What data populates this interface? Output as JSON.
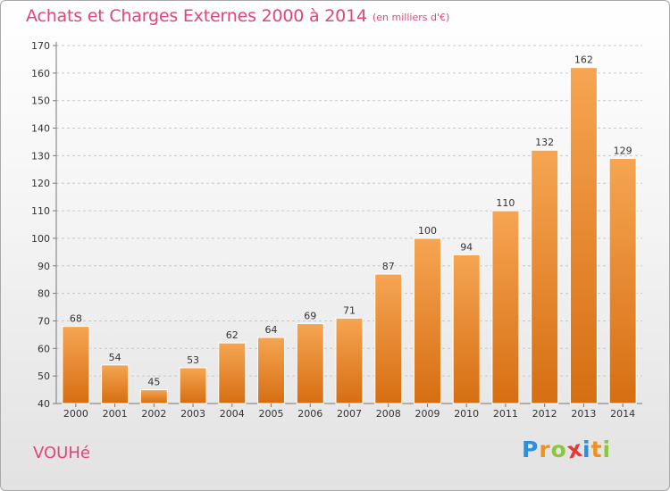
{
  "title": "Achats et Charges Externes 2000 à 2014",
  "subtitle": "(en milliers d'€)",
  "commune": "VOUHé",
  "logo": {
    "letters": [
      "P",
      "r",
      "o",
      "x",
      "i",
      "t",
      "i"
    ],
    "colors": [
      "#2e8fd6",
      "#f0901e",
      "#8cc63f",
      "#e53935",
      "#2e8fd6",
      "#f0901e",
      "#8cc63f"
    ]
  },
  "colors": {
    "title": "#e3447b",
    "bar_top": "#f6a552",
    "bar_bottom": "#d66e12",
    "gridline": "#c8c8c8",
    "text": "#333333"
  },
  "chart_data": {
    "type": "bar",
    "title": "Achats et Charges Externes 2000 à 2014",
    "subtitle": "(en milliers d'€)",
    "xlabel": "",
    "ylabel": "",
    "categories": [
      "2000",
      "2001",
      "2002",
      "2003",
      "2004",
      "2005",
      "2006",
      "2007",
      "2008",
      "2009",
      "2010",
      "2011",
      "2012",
      "2013",
      "2014"
    ],
    "values": [
      68,
      54,
      45,
      53,
      62,
      64,
      69,
      71,
      87,
      100,
      94,
      110,
      132,
      162,
      129
    ],
    "ylim": [
      40,
      170
    ],
    "yticks": [
      40,
      50,
      60,
      70,
      80,
      90,
      100,
      110,
      120,
      130,
      140,
      150,
      160,
      170
    ],
    "grid": "horizontal dashed",
    "data_labels": true
  }
}
